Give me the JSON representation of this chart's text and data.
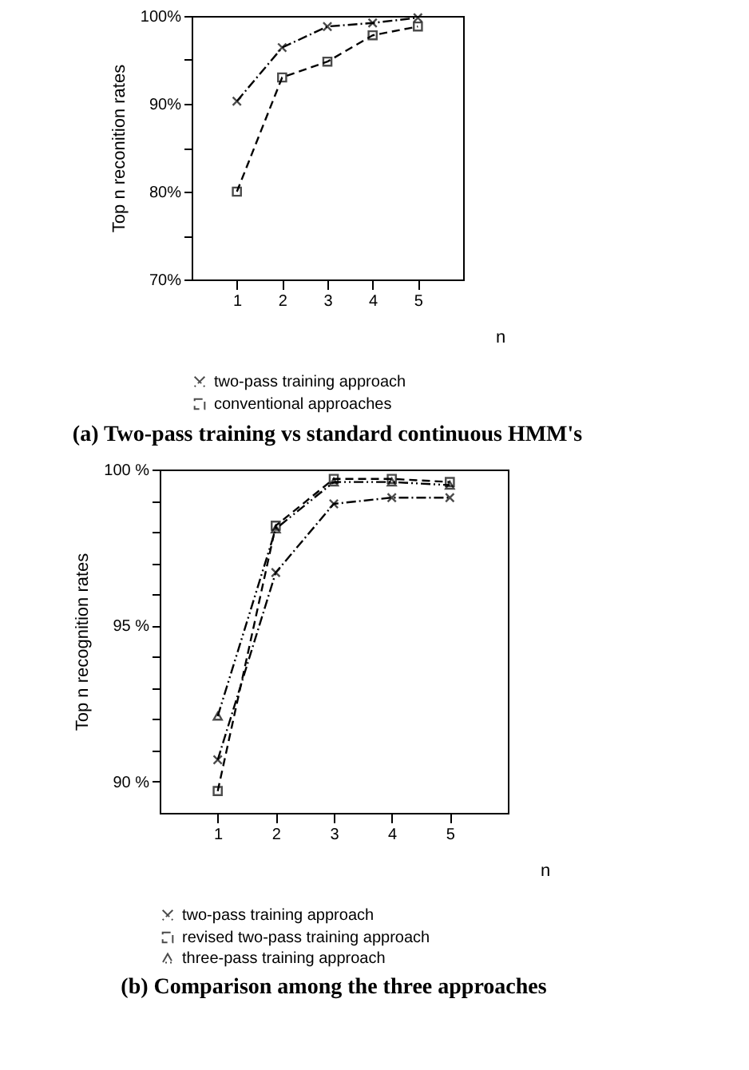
{
  "chart_data": [
    {
      "type": "line",
      "title": "(a) Two-pass training vs standard continuous HMM's",
      "xlabel": "n",
      "ylabel": "Top n reconition rates",
      "x": [
        1,
        2,
        3,
        4,
        5
      ],
      "series": [
        {
          "name": "two-pass training approach",
          "color": "#000000",
          "marker": "cross",
          "values": [
            90.3,
            96.4,
            98.8,
            99.2,
            99.8
          ]
        },
        {
          "name": "conventional approaches",
          "color": "#000000",
          "marker": "square",
          "values": [
            80,
            93,
            94.8,
            97.8,
            98.8
          ]
        }
      ],
      "xlim": [
        0,
        6
      ],
      "xticks": [
        1,
        2,
        3,
        4,
        5
      ],
      "ylim": [
        70,
        100
      ],
      "yticks": [
        {
          "value": 70,
          "label": "70%"
        },
        {
          "value": 75,
          "label": null
        },
        {
          "value": 80,
          "label": "80%"
        },
        {
          "value": 85,
          "label": null
        },
        {
          "value": 90,
          "label": "90%"
        },
        {
          "value": 95,
          "label": null
        },
        {
          "value": 100,
          "label": "100%"
        }
      ],
      "grid": false,
      "legend": "bottom",
      "line_style": "dashed"
    },
    {
      "type": "line",
      "title": "(b) Comparison among the three approaches",
      "xlabel": "n",
      "ylabel": "Top n recognition rates",
      "x": [
        1,
        2,
        3,
        4,
        5
      ],
      "series": [
        {
          "name": "two-pass training approach",
          "color": "#000000",
          "marker": "cross",
          "values": [
            90.7,
            96.7,
            98.9,
            99.1,
            99.1
          ]
        },
        {
          "name": "revised two-pass training approach",
          "color": "#000000",
          "marker": "square",
          "values": [
            89.7,
            98.2,
            99.7,
            99.7,
            99.6
          ]
        },
        {
          "name": "three-pass training approach",
          "color": "#000000",
          "marker": "triangle",
          "values": [
            92.1,
            98.1,
            99.6,
            99.6,
            99.5
          ]
        }
      ],
      "xlim": [
        0,
        6
      ],
      "xticks": [
        1,
        2,
        3,
        4,
        5
      ],
      "ylim": [
        89,
        100
      ],
      "yticks": [
        {
          "value": 90,
          "label": "90 %"
        },
        {
          "value": 91,
          "label": null
        },
        {
          "value": 92,
          "label": null
        },
        {
          "value": 93,
          "label": null
        },
        {
          "value": 94,
          "label": null
        },
        {
          "value": 95,
          "label": "95 %"
        },
        {
          "value": 96,
          "label": null
        },
        {
          "value": 97,
          "label": null
        },
        {
          "value": 98,
          "label": null
        },
        {
          "value": 99,
          "label": null
        },
        {
          "value": 100,
          "label": "100 %"
        }
      ],
      "grid": false,
      "legend": "bottom",
      "line_style": "dashed"
    }
  ]
}
